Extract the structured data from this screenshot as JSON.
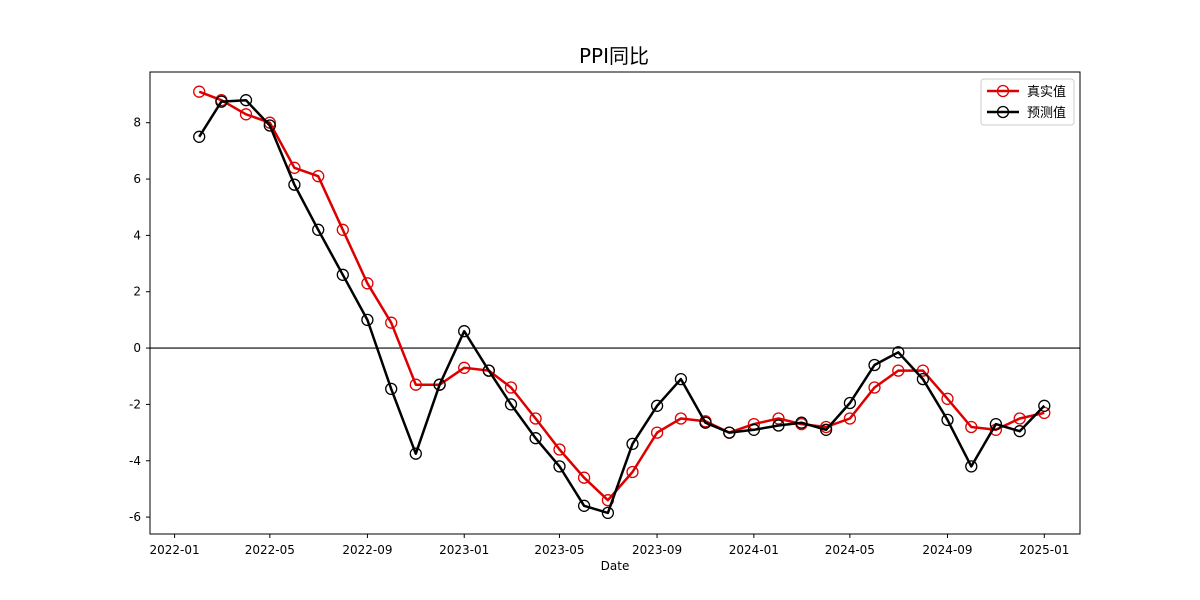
{
  "chart_data": {
    "type": "line",
    "title": "PPI同比",
    "xlabel": "Date",
    "ylabel": "",
    "x_ticks": [
      "2022-01",
      "2022-05",
      "2022-09",
      "2023-01",
      "2023-05",
      "2023-09",
      "2024-01",
      "2024-05",
      "2024-09",
      "2025-01"
    ],
    "y_ticks": [
      -6,
      -4,
      -2,
      0,
      2,
      4,
      6,
      8
    ],
    "xlim": [
      "2021-12-01",
      "2025-02-15"
    ],
    "ylim": [
      -6.6,
      9.8
    ],
    "grid": false,
    "reference_line_y": 0,
    "legend_position": "top-right",
    "x": [
      "2022-02",
      "2022-03",
      "2022-04",
      "2022-05",
      "2022-06",
      "2022-07",
      "2022-08",
      "2022-09",
      "2022-10",
      "2022-11",
      "2022-12",
      "2023-01",
      "2023-02",
      "2023-03",
      "2023-04",
      "2023-05",
      "2023-06",
      "2023-07",
      "2023-08",
      "2023-09",
      "2023-10",
      "2023-11",
      "2023-12",
      "2024-01",
      "2024-02",
      "2024-03",
      "2024-04",
      "2024-05",
      "2024-06",
      "2024-07",
      "2024-08",
      "2024-09",
      "2024-10",
      "2024-11",
      "2024-12",
      "2025-01"
    ],
    "series": [
      {
        "name": "真实值",
        "color": "#dd0000",
        "values": [
          9.1,
          8.8,
          8.3,
          8.0,
          6.4,
          6.1,
          4.2,
          2.3,
          0.9,
          -1.3,
          -1.3,
          -0.7,
          -0.8,
          -1.4,
          -2.5,
          -3.6,
          -4.6,
          -5.4,
          -4.4,
          -3.0,
          -2.5,
          -2.6,
          -3.0,
          -2.7,
          -2.5,
          -2.7,
          -2.8,
          -2.5,
          -1.4,
          -0.8,
          -0.8,
          -1.8,
          -2.8,
          -2.9,
          -2.5,
          -2.3
        ]
      },
      {
        "name": "预测值",
        "color": "#000000",
        "values": [
          7.5,
          8.75,
          8.8,
          7.9,
          5.8,
          4.2,
          2.6,
          1.0,
          -1.45,
          -3.75,
          -1.3,
          0.6,
          -0.8,
          -2.0,
          -3.2,
          -4.2,
          -5.6,
          -5.85,
          -3.4,
          -2.05,
          -1.1,
          -2.65,
          -3.0,
          -2.9,
          -2.75,
          -2.65,
          -2.9,
          -1.95,
          -0.6,
          -0.15,
          -1.1,
          -2.55,
          -4.2,
          -2.7,
          -2.95,
          -2.05
        ]
      }
    ]
  }
}
